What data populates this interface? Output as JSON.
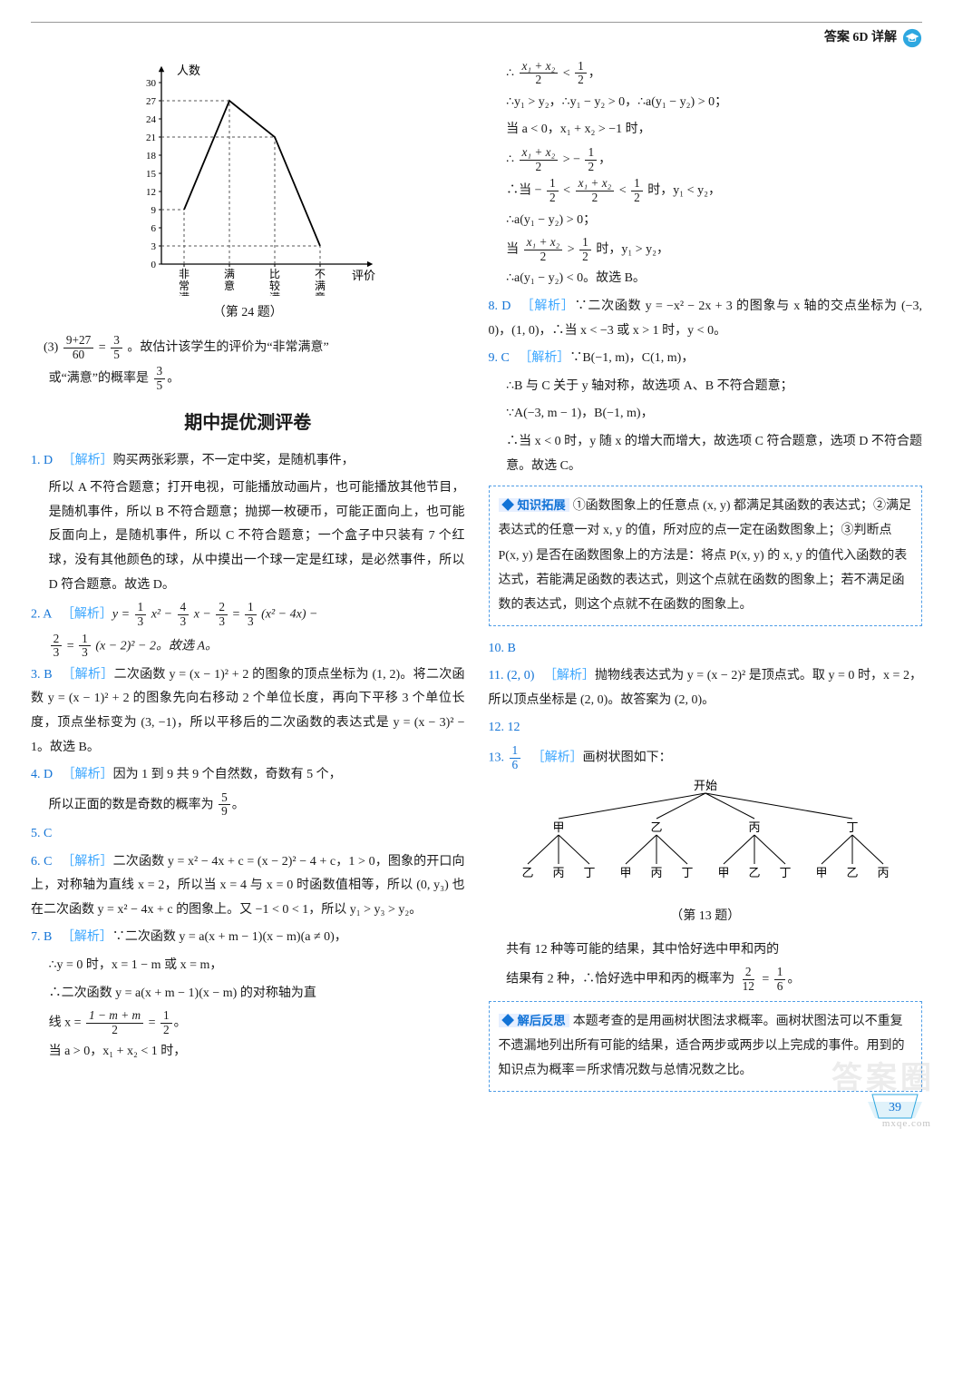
{
  "header": {
    "label": "答案 6D 详解"
  },
  "page_number": "39",
  "watermark_top": "答案圈",
  "watermark_bot": "mxqe.com",
  "chart": {
    "type": "line",
    "title_y": "人数",
    "title_x": "评价",
    "categories": [
      "非常满意",
      "满意",
      "比较满意",
      "不满意"
    ],
    "values": [
      9,
      27,
      21,
      3
    ],
    "yticks": [
      0,
      3,
      6,
      9,
      12,
      15,
      18,
      21,
      24,
      27,
      30
    ],
    "ylim": [
      0,
      30
    ],
    "line_color": "#000000",
    "grid_style": "dashed",
    "grid_color": "#555555",
    "marker": "none",
    "background": "#ffffff",
    "axis_fontsize": 11,
    "caption": "（第 24 题）"
  },
  "left": {
    "prob24_3": {
      "line1_pre": "(3)",
      "fr1n": "9+27",
      "fr1d": "60",
      "fr2n": "3",
      "fr2d": "5",
      "line1_post": "。故估计该学生的评价为“非常满意”",
      "line2_pre": "或“满意”的概率是",
      "fr3n": "3",
      "fr3d": "5",
      "period": "。"
    },
    "section_title": "期中提优测评卷",
    "q1": {
      "num": "1.",
      "ans": "D",
      "tag": "［解析］",
      "text1": "购买两张彩票，不一定中奖，是随机事件，",
      "text2": "所以 A 不符合题意；打开电视，可能播放动画片，也可能播放其他节目，是随机事件，所以 B 不符合题意；抛掷一枚硬币，可能正面向上，也可能反面向上，是随机事件，所以 C 不符合题意；一个盒子中只装有 7 个红球，没有其他颜色的球，从中摸出一个球一定是红球，是必然事件，所以 D 符合题意。故选 D。"
    },
    "q2": {
      "num": "2.",
      "ans": "A",
      "tag": "［解析］",
      "part1": "y = ",
      "fa_n": "1",
      "fa_d": "3",
      "mid1": " x² − ",
      "fb_n": "4",
      "fb_d": "3",
      "mid2": " x − ",
      "fc_n": "2",
      "fc_d": "3",
      "mid3": " = ",
      "fd_n": "1",
      "fd_d": "3",
      "mid4": " (x² − 4x) −",
      "fe_n": "2",
      "fe_d": "3",
      "mid5": " = ",
      "ff_n": "1",
      "ff_d": "3",
      "mid6": " (x − 2)² − 2。故选 A。"
    },
    "q3": {
      "num": "3.",
      "ans": "B",
      "tag": "［解析］",
      "text": "二次函数 y = (x − 1)² + 2 的图象的顶点坐标为 (1, 2)。将二次函数 y = (x − 1)² + 2 的图象先向右移动 2 个单位长度，再向下平移 3 个单位长度，顶点坐标变为 (3, −1)，所以平移后的二次函数的表达式是 y = (x − 3)² − 1。故选 B。"
    },
    "q4": {
      "num": "4.",
      "ans": "D",
      "tag": "［解析］",
      "txt1": "因为 1 到 9 共 9 个自然数，奇数有 5 个，",
      "txt2": "所以正面的数是奇数的概率为",
      "fn": "5",
      "fd": "9",
      "period": "。"
    },
    "q5": {
      "num": "5.",
      "ans": "C"
    },
    "q6": {
      "num": "6.",
      "ans": "C",
      "tag": "［解析］",
      "text": "二次函数 y = x² − 4x + c = (x − 2)² − 4 + c，1 > 0，图象的开口向上，对称轴为直线 x = 2，所以当 x = 4 与 x = 0 时函数值相等，所以 (0, y₃) 也在二次函数 y = x² − 4x + c 的图象上。又 −1 < 0 < 1，所以 y₁ > y₃ > y₂。"
    },
    "q7": {
      "num": "7.",
      "ans": "B",
      "tag": "［解析］",
      "line1": "∵二次函数 y = a(x + m − 1)(x − m)(a ≠ 0)，",
      "line2": "∴y = 0 时，x = 1 − m 或 x = m，",
      "line3": "∴二次函数 y = a(x + m − 1)(x − m) 的对称轴为直",
      "line4_pre": "线 x = ",
      "fg_n": "1 − m + m",
      "fg_d": "2",
      "fg_mid": " = ",
      "fh_n": "1",
      "fh_d": "2",
      "line4_post": "。",
      "line5": "当 a > 0，x₁ + x₂ < 1 时，"
    }
  },
  "right": {
    "cont7": {
      "l1_pre": "∴",
      "fa_n": "x₁ + x₂",
      "fa_d": "2",
      "fa_mid": " < ",
      "fb_n": "1",
      "fb_d": "2",
      "l1_post": "，",
      "l2": "∴y₁ > y₂，∴y₁ − y₂ > 0，∴a(y₁ − y₂) > 0；",
      "l3": "当 a < 0，x₁ + x₂ > −1 时，",
      "l4_pre": "∴",
      "fc_n": "x₁ + x₂",
      "fc_d": "2",
      "fc_mid": " > −",
      "fd_n": "1",
      "fd_d": "2",
      "l4_post": "，",
      "l5_pre": "∴当 −",
      "fe_n": "1",
      "fe_d": "2",
      "l5_mid1": " < ",
      "ff_n": "x₁ + x₂",
      "ff_d": "2",
      "l5_mid2": " < ",
      "fg_n": "1",
      "fg_d": "2",
      "l5_post": " 时，y₁ < y₂，",
      "l6": "∴a(y₁ − y₂) > 0；",
      "l7_pre": "当",
      "fh_n": "x₁ + x₂",
      "fh_d": "2",
      "l7_mid": " > ",
      "fi_n": "1",
      "fi_d": "2",
      "l7_post": " 时，y₁ > y₂，",
      "l8": "∴a(y₁ − y₂) < 0。故选 B。"
    },
    "q8": {
      "num": "8.",
      "ans": "D",
      "tag": "［解析］",
      "text": "∵二次函数 y = −x² − 2x + 3 的图象与 x 轴的交点坐标为 (−3, 0)，(1, 0)，∴当 x < −3 或 x > 1 时，y < 0。"
    },
    "q9": {
      "num": "9.",
      "ans": "C",
      "tag": "［解析］",
      "l1": "∵B(−1, m)，C(1, m)，",
      "l2": "∴B 与 C 关于 y 轴对称，故选项 A、B 不符合题意；",
      "l3": "∵A(−3, m − 1)，B(−1, m)，",
      "l4": "∴当 x < 0 时，y 随 x 的增大而增大，故选项 C 符合题意，选项 D 不符合题意。故选 C。"
    },
    "box1": {
      "label": "◆ 知识拓展",
      "text": "①函数图象上的任意点 (x, y) 都满足其函数的表达式；②满足表达式的任意一对 x, y 的值，所对应的点一定在函数图象上；③判断点 P(x, y) 是否在函数图象上的方法是：将点 P(x, y) 的 x, y 的值代入函数的表达式，若能满足函数的表达式，则这个点就在函数的图象上；若不满足函数的表达式，则这个点就不在函数的图象上。"
    },
    "q10": {
      "num": "10.",
      "ans": "B"
    },
    "q11": {
      "num": "11.",
      "ans": "(2, 0)",
      "tag": "［解析］",
      "text": "抛物线表达式为 y = (x − 2)² 是顶点式。取 y = 0 时，x = 2，所以顶点坐标是 (2, 0)。故答案为 (2, 0)。"
    },
    "q12": {
      "num": "12.",
      "ans": "12"
    },
    "q13": {
      "num": "13.",
      "ans_n": "1",
      "ans_d": "6",
      "tag": "［解析］",
      "intro": "画树状图如下：",
      "tree": {
        "root": "开始",
        "level1": [
          "甲",
          "乙",
          "丙",
          "丁"
        ],
        "level2": [
          [
            "乙",
            "丙",
            "丁"
          ],
          [
            "甲",
            "丙",
            "丁"
          ],
          [
            "甲",
            "乙",
            "丁"
          ],
          [
            "甲",
            "乙",
            "丙"
          ]
        ],
        "caption": "（第 13 题）",
        "line_color": "#000000",
        "font_size": 13
      },
      "t1": "共有 12 种等可能的结果，其中恰好选中甲和丙的",
      "t2_pre": "结果有 2 种，∴恰好选中甲和丙的概率为",
      "fr_n": "2",
      "fr_d": "12",
      "mid": " = ",
      "fr2_n": "1",
      "fr2_d": "6",
      "t2_post": "。"
    },
    "box2": {
      "label": "◆ 解后反思",
      "text": "本题考查的是用画树状图法求概率。画树状图法可以不重复不遗漏地列出所有可能的结果，适合两步或两步以上完成的事件。用到的知识点为概率＝所求情况数与总情况数之比。"
    }
  }
}
